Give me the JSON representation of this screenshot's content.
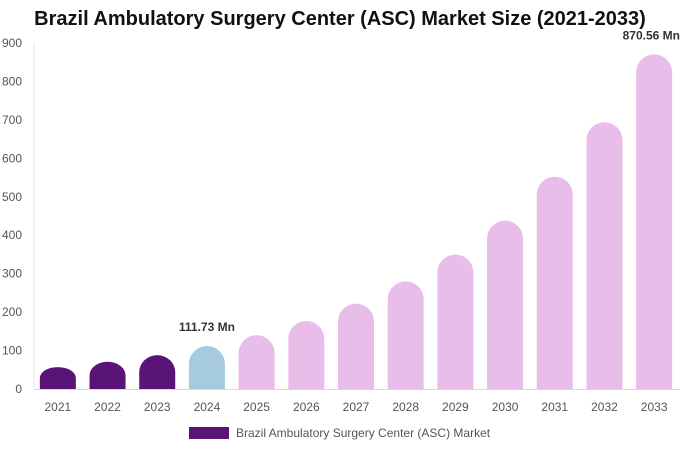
{
  "chart_data": {
    "type": "bar",
    "title": "Brazil Ambulatory Surgery Center (ASC) Market Size (2021-2033)",
    "xlabel": "",
    "ylabel": "",
    "ylim": [
      0,
      900
    ],
    "yticks": [
      0,
      100,
      200,
      300,
      400,
      500,
      600,
      700,
      800,
      900
    ],
    "categories": [
      "2021",
      "2022",
      "2023",
      "2024",
      "2025",
      "2026",
      "2027",
      "2028",
      "2029",
      "2030",
      "2031",
      "2032",
      "2033"
    ],
    "series": [
      {
        "name": "Brazil Ambulatory Surgery Center (ASC) Market",
        "values": [
          57,
          71,
          88,
          111.73,
          140,
          177,
          222,
          280,
          350,
          438,
          552,
          694,
          870.56
        ]
      }
    ],
    "bar_colors": [
      "#5a1478",
      "#5a1478",
      "#5a1478",
      "#a6cadf",
      "#e8bde9",
      "#e8bde9",
      "#e8bde9",
      "#e8bde9",
      "#e8bde9",
      "#e8bde9",
      "#e8bde9",
      "#e8bde9",
      "#e8bde9"
    ],
    "annotations": [
      {
        "category": "2024",
        "text": "111.73 Mn"
      },
      {
        "category": "2033",
        "text": "870.56 Mn"
      }
    ],
    "grid": false,
    "legend_position": "bottom-center",
    "legend_color": "#5a1478"
  }
}
